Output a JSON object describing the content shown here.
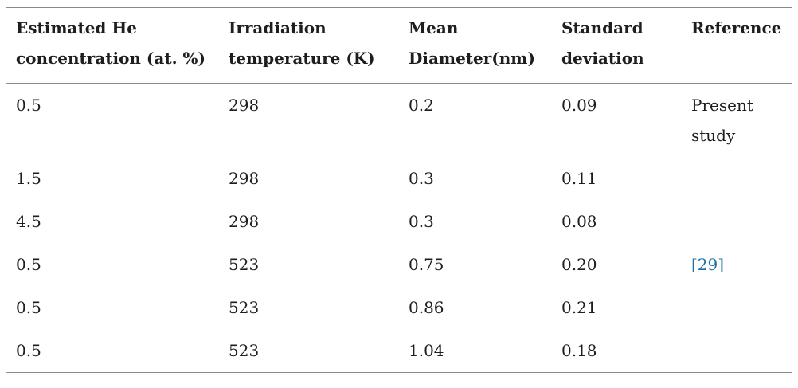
{
  "table": {
    "text_color": "#1e1e1e",
    "rule_color": "#8a8a8a",
    "link_color": "#1d6fa5",
    "citation_link_text": "[29]",
    "columns": [
      {
        "key": "estimated-he-concentration",
        "label": "Estimated He concentration (at. %)"
      },
      {
        "key": "irradiation-temperature",
        "label": "Irradiation temperature (K)"
      },
      {
        "key": "mean-diameter",
        "label": "Mean Diameter(nm)"
      },
      {
        "key": "standard-deviation",
        "label": "Standard deviation"
      },
      {
        "key": "reference",
        "label": "Reference"
      }
    ],
    "rows": [
      [
        "0.5",
        "298",
        "0.2",
        "0.09",
        "Present study"
      ],
      [
        "1.5",
        "298",
        "0.3",
        "0.11",
        ""
      ],
      [
        "4.5",
        "298",
        "0.3",
        "0.08",
        ""
      ],
      [
        "0.5",
        "523",
        "0.75",
        "0.20",
        "[29]"
      ],
      [
        "0.5",
        "523",
        "0.86",
        "0.21",
        ""
      ],
      [
        "0.5",
        "523",
        "1.04",
        "0.18",
        ""
      ]
    ]
  }
}
